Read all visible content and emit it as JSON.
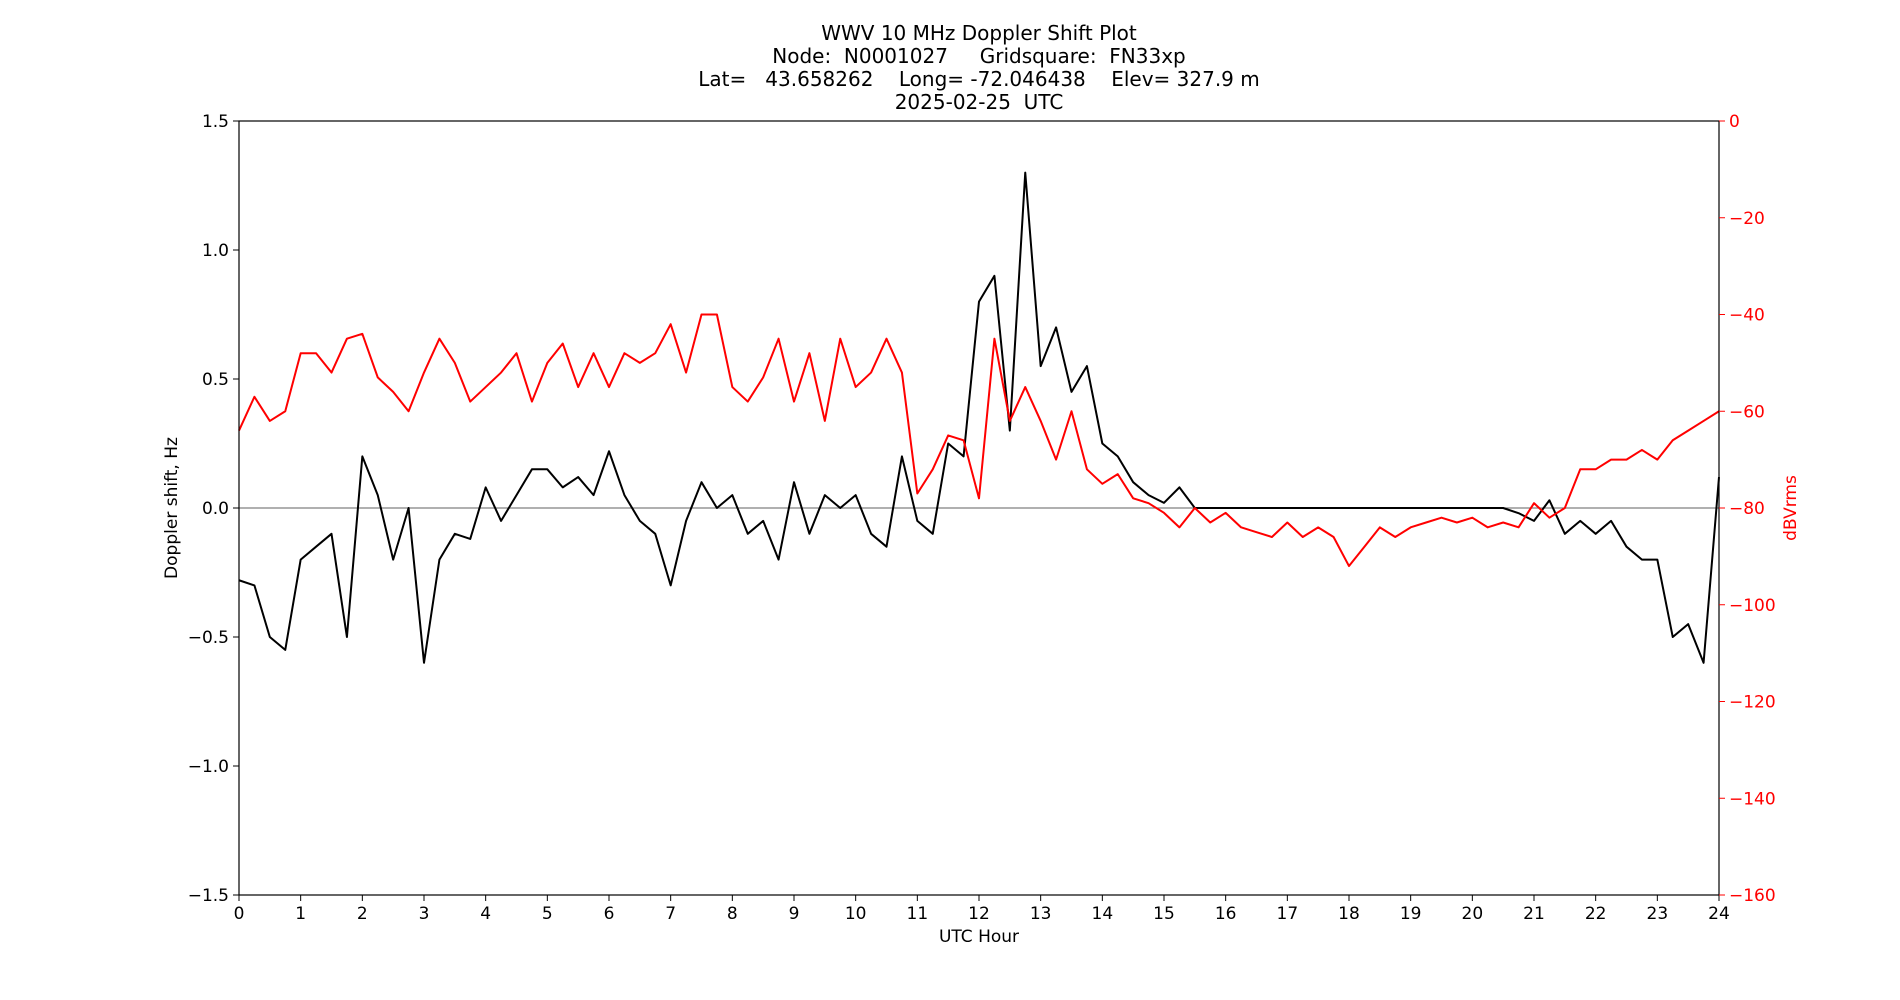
{
  "chart_data": {
    "type": "line",
    "title": [
      "WWV 10 MHz Doppler Shift Plot",
      "Node:  N0001027     Gridsquare:  FN33xp",
      "Lat=   43.658262    Long= -72.046438    Elev= 327.9 m",
      "2025-02-25  UTC"
    ],
    "xlabel": "UTC Hour",
    "ylabel": "Doppler shift, Hz",
    "y2label": "dBVrms",
    "y2color": "#ff0000",
    "reference_line": 0,
    "xlim": [
      0,
      24
    ],
    "xticks": [
      0,
      1,
      2,
      3,
      4,
      5,
      6,
      7,
      8,
      9,
      10,
      11,
      12,
      13,
      14,
      15,
      16,
      17,
      18,
      19,
      20,
      21,
      22,
      23,
      24
    ],
    "ylim": [
      -1.5,
      1.5
    ],
    "yticks": [
      {
        "value": -1.5,
        "label": "−1.5"
      },
      {
        "value": -1,
        "label": "−1.0"
      },
      {
        "value": -0.5,
        "label": "−0.5"
      },
      {
        "value": 0,
        "label": "0.0"
      },
      0.5,
      {
        "value": 1,
        "label": "1.0"
      },
      1.5
    ],
    "y2lim": [
      -160,
      0
    ],
    "y2ticks": [
      {
        "value": -160,
        "label": "−160"
      },
      {
        "value": -140,
        "label": "−140"
      },
      {
        "value": -120,
        "label": "−120"
      },
      {
        "value": -100,
        "label": "−100"
      },
      {
        "value": -80,
        "label": "−80"
      },
      {
        "value": -60,
        "label": "−60"
      },
      {
        "value": -40,
        "label": "−40"
      },
      {
        "value": -20,
        "label": "−20"
      },
      0
    ],
    "x": [
      0,
      0.25,
      0.5,
      0.75,
      1,
      1.25,
      1.5,
      1.75,
      2,
      2.25,
      2.5,
      2.75,
      3,
      3.25,
      3.5,
      3.75,
      4,
      4.25,
      4.5,
      4.75,
      5,
      5.25,
      5.5,
      5.75,
      6,
      6.25,
      6.5,
      6.75,
      7,
      7.25,
      7.5,
      7.75,
      8,
      8.25,
      8.5,
      8.75,
      9,
      9.25,
      9.5,
      9.75,
      10,
      10.25,
      10.5,
      10.75,
      11,
      11.25,
      11.5,
      11.75,
      12,
      12.25,
      12.5,
      12.75,
      13,
      13.25,
      13.5,
      13.75,
      14,
      14.25,
      14.5,
      14.75,
      15,
      15.25,
      15.5,
      15.75,
      16,
      16.25,
      16.5,
      16.75,
      17,
      17.25,
      17.5,
      17.75,
      18,
      18.25,
      18.5,
      18.75,
      19,
      19.25,
      19.5,
      19.75,
      20,
      20.25,
      20.5,
      20.75,
      21,
      21.25,
      21.5,
      21.75,
      22,
      22.25,
      22.5,
      22.75,
      23,
      23.25,
      23.5,
      23.75,
      24
    ],
    "series": [
      {
        "color": "#000000",
        "axis": "y",
        "values": [
          -0.28,
          -0.3,
          -0.5,
          -0.55,
          -0.2,
          -0.15,
          -0.1,
          -0.5,
          0.2,
          0.05,
          -0.2,
          0,
          -0.6,
          -0.2,
          -0.1,
          -0.12,
          0.08,
          -0.05,
          0.05,
          0.15,
          0.15,
          0.08,
          0.12,
          0.05,
          0.22,
          0.05,
          -0.05,
          -0.1,
          -0.3,
          -0.05,
          0.1,
          0,
          0.05,
          -0.1,
          -0.05,
          -0.2,
          0.1,
          -0.1,
          0.05,
          0,
          0.05,
          -0.1,
          -0.15,
          0.2,
          -0.05,
          -0.1,
          0.25,
          0.2,
          0.8,
          0.9,
          0.3,
          1.3,
          0.55,
          0.7,
          0.45,
          0.55,
          0.25,
          0.2,
          0.1,
          0.05,
          0.02,
          0.08,
          0,
          0,
          0,
          0,
          0,
          0,
          0,
          0,
          0,
          0,
          0,
          0,
          0,
          0,
          0,
          0,
          0,
          0,
          0,
          0,
          0,
          -0.02,
          -0.05,
          0.03,
          -0.1,
          -0.05,
          -0.1,
          -0.05,
          -0.15,
          -0.2,
          -0.2,
          -0.5,
          -0.45,
          -0.6,
          0.12
        ]
      },
      {
        "color": "#ff0000",
        "axis": "y2",
        "values": [
          -64,
          -57,
          -62,
          -60,
          -48,
          -48,
          -52,
          -45,
          -44,
          -53,
          -56,
          -60,
          -52,
          -45,
          -50,
          -58,
          -55,
          -52,
          -48,
          -58,
          -50,
          -46,
          -55,
          -48,
          -55,
          -48,
          -50,
          -48,
          -42,
          -52,
          -40,
          -40,
          -55,
          -58,
          -53,
          -45,
          -58,
          -48,
          -62,
          -45,
          -55,
          -52,
          -45,
          -52,
          -77,
          -72,
          -65,
          -66,
          -78,
          -45,
          -62,
          -55,
          -62,
          -70,
          -60,
          -72,
          -75,
          -73,
          -78,
          -79,
          -81,
          -84,
          -80,
          -83,
          -81,
          -84,
          -85,
          -86,
          -83,
          -86,
          -84,
          -86,
          -92,
          -88,
          -84,
          -86,
          -84,
          -83,
          -82,
          -83,
          -82,
          -84,
          -83,
          -84,
          -79,
          -82,
          -80,
          -72,
          -72,
          -70,
          -70,
          -68,
          -70,
          -66,
          -64,
          -62,
          -60
        ]
      }
    ]
  }
}
